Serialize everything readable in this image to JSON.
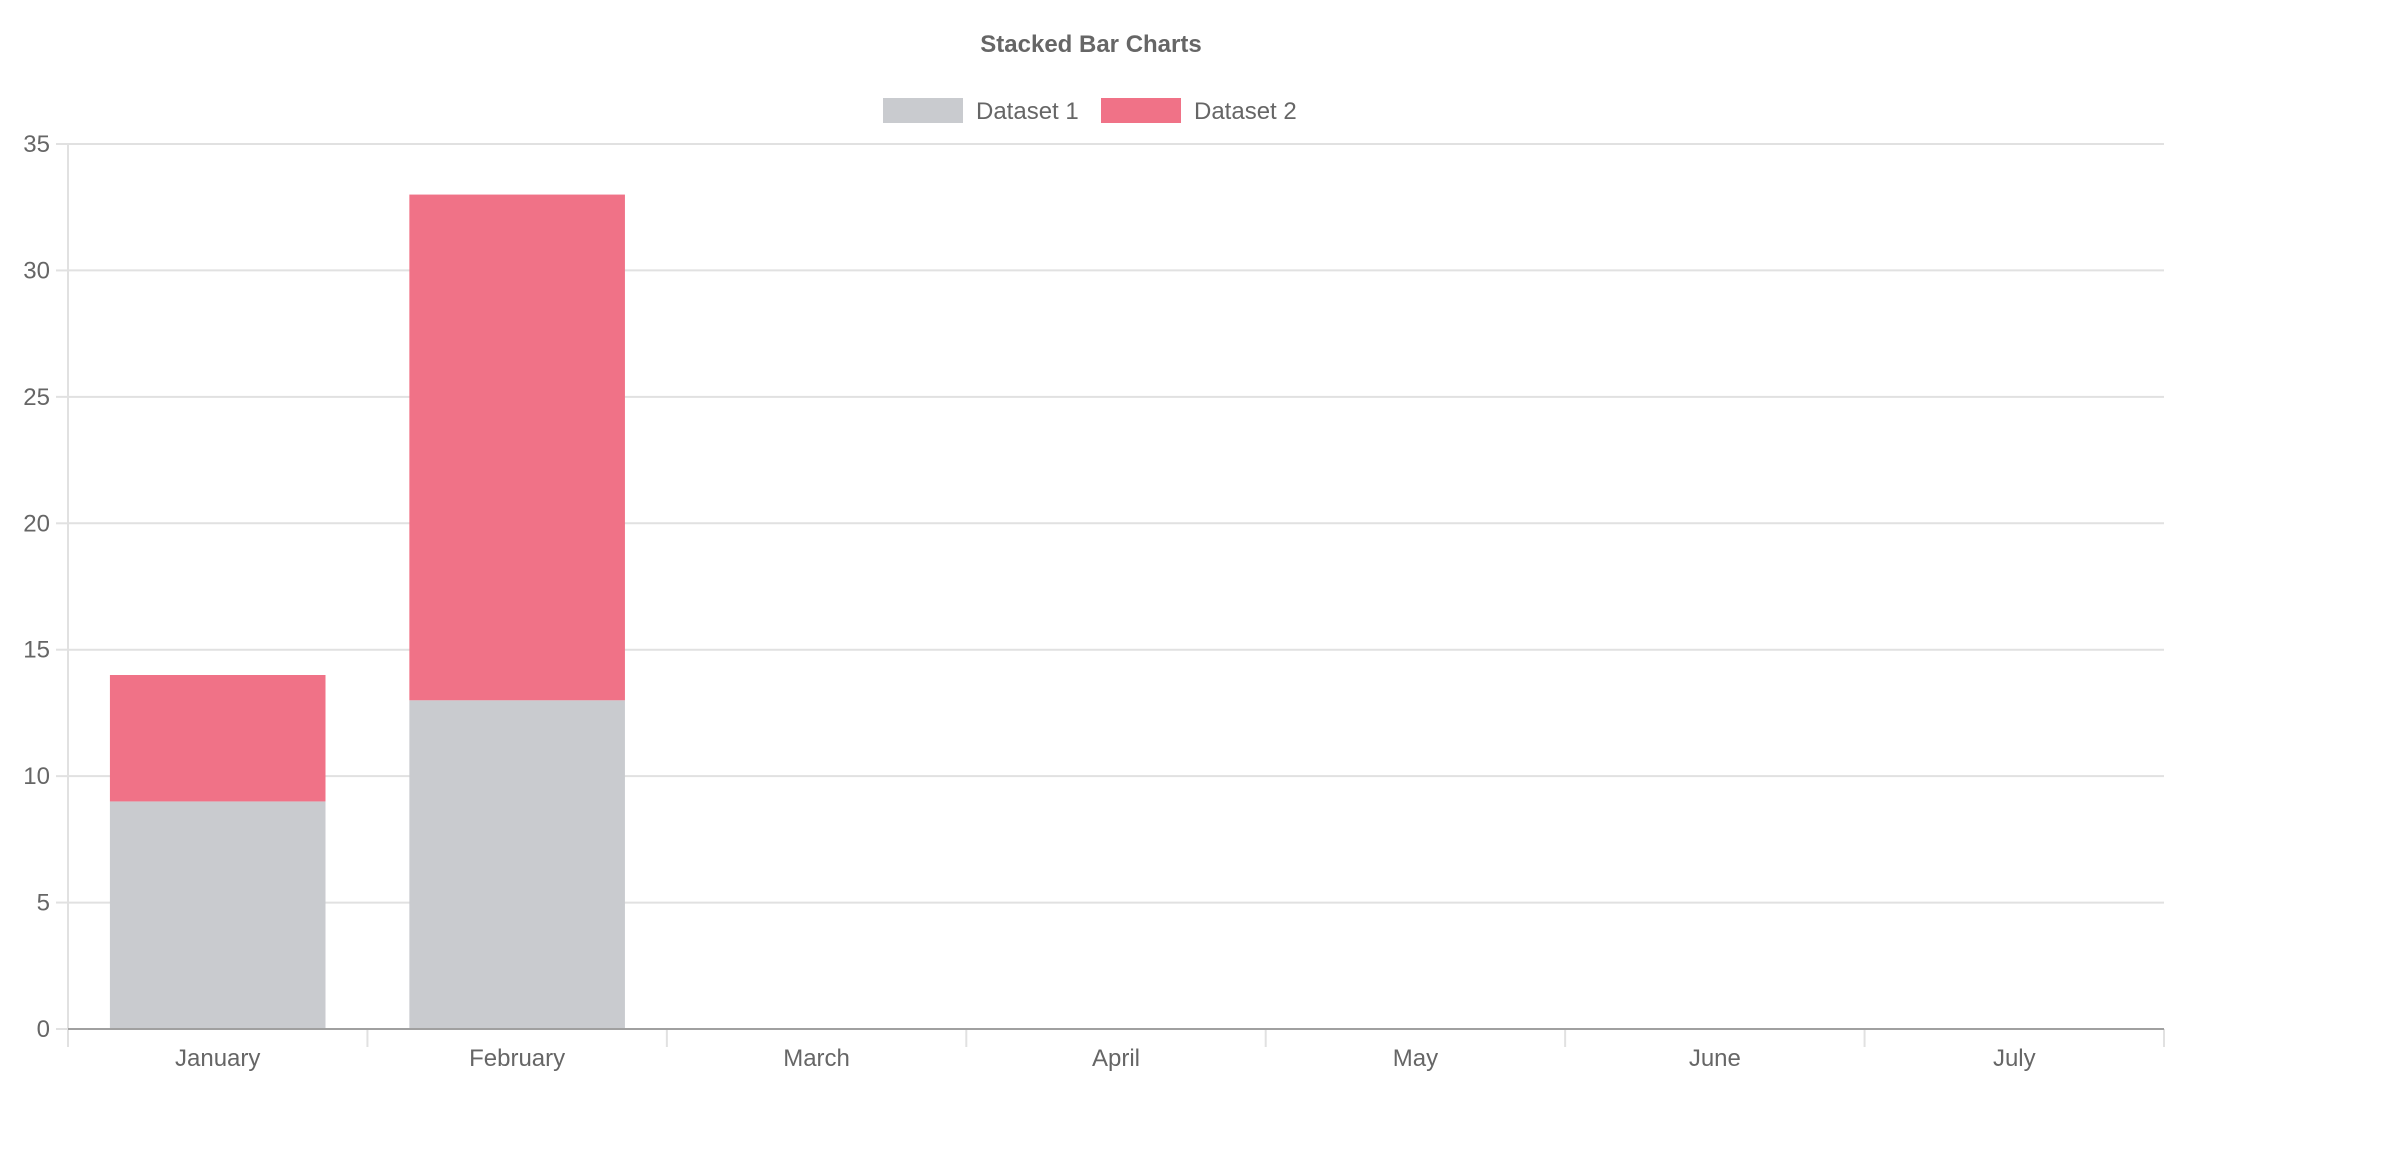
{
  "chart_data": {
    "type": "bar",
    "stacked": true,
    "title": "Stacked Bar Charts",
    "categories": [
      "January",
      "February",
      "March",
      "April",
      "May",
      "June",
      "July"
    ],
    "series": [
      {
        "name": "Dataset 1",
        "color": "#c9cbcf",
        "values": [
          9,
          13,
          0,
          0,
          0,
          0,
          0
        ]
      },
      {
        "name": "Dataset 2",
        "color": "#f07287",
        "values": [
          5,
          20,
          0,
          0,
          0,
          0,
          0
        ]
      }
    ],
    "ylim": [
      0,
      35
    ],
    "yticks": [
      0,
      5,
      10,
      15,
      20,
      25,
      30,
      35
    ],
    "grid": true,
    "legend": "top"
  }
}
